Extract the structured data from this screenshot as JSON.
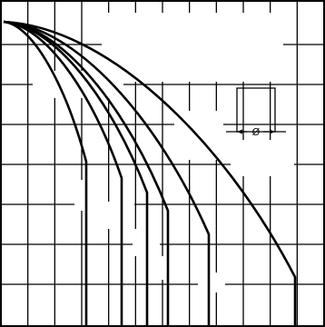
{
  "diagram": {
    "grid": {
      "columns": 12,
      "rows": 8
    },
    "curve_count": 6,
    "inset_symbol": {
      "icon": "pipe-diameter-symbol",
      "label": "Ø"
    }
  }
}
